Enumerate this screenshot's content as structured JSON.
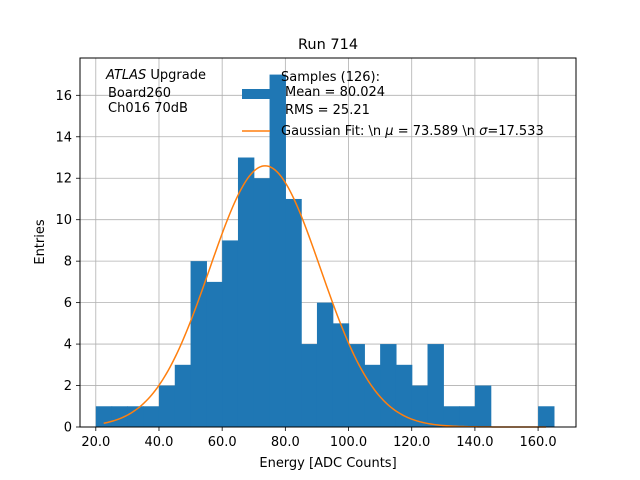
{
  "chart_data": {
    "type": "histogram",
    "title": "Run 714",
    "xlabel": "Energy [ADC Counts]",
    "ylabel": "Entries",
    "xlim": [
      15,
      172
    ],
    "ylim": [
      0,
      17.8
    ],
    "grid": true,
    "xticks": [
      20,
      40,
      60,
      80,
      100,
      120,
      140,
      160
    ],
    "xtick_labels": [
      "20.0",
      "40.0",
      "60.0",
      "80.0",
      "100.0",
      "120.0",
      "140.0",
      "160.0"
    ],
    "yticks": [
      0,
      2,
      4,
      6,
      8,
      10,
      12,
      14,
      16
    ],
    "ytick_labels": [
      "0",
      "2",
      "4",
      "6",
      "8",
      "10",
      "12",
      "14",
      "16"
    ],
    "annotation": {
      "atlas": "ATLAS",
      "upgrade": " Upgrade",
      "line2": "Board260",
      "line3": "Ch016 70dB"
    },
    "legend": {
      "placement": "top-right",
      "hist_lines": [
        "Samples (126):",
        "Mean = 80.024",
        "RMS = 25.21"
      ],
      "fit_prefix": "Gaussian Fit: \\n ",
      "fit_mu": "μ",
      "fit_mid": " = 73.589 \\n ",
      "fit_sigma": "σ",
      "fit_suffix": "=17.533"
    },
    "histogram": {
      "name": "Samples (126)",
      "color": "#1f77b4",
      "bins": [
        {
          "x0": 20.0,
          "x1": 25.0,
          "count": 1
        },
        {
          "x0": 25.0,
          "x1": 30.0,
          "count": 1
        },
        {
          "x0": 30.0,
          "x1": 35.0,
          "count": 1
        },
        {
          "x0": 35.0,
          "x1": 40.0,
          "count": 1
        },
        {
          "x0": 40.0,
          "x1": 45.0,
          "count": 2
        },
        {
          "x0": 45.0,
          "x1": 50.0,
          "count": 3
        },
        {
          "x0": 50.0,
          "x1": 55.0,
          "count": 8
        },
        {
          "x0": 55.0,
          "x1": 60.0,
          "count": 7
        },
        {
          "x0": 60.0,
          "x1": 65.0,
          "count": 9
        },
        {
          "x0": 65.0,
          "x1": 70.0,
          "count": 13
        },
        {
          "x0": 70.0,
          "x1": 75.0,
          "count": 12
        },
        {
          "x0": 75.0,
          "x1": 80.0,
          "count": 17
        },
        {
          "x0": 80.0,
          "x1": 85.0,
          "count": 11
        },
        {
          "x0": 85.0,
          "x1": 90.0,
          "count": 4
        },
        {
          "x0": 90.0,
          "x1": 95.0,
          "count": 6
        },
        {
          "x0": 95.0,
          "x1": 100.0,
          "count": 5
        },
        {
          "x0": 100.0,
          "x1": 105.0,
          "count": 4
        },
        {
          "x0": 105.0,
          "x1": 110.0,
          "count": 3
        },
        {
          "x0": 110.0,
          "x1": 115.0,
          "count": 4
        },
        {
          "x0": 115.0,
          "x1": 120.0,
          "count": 3
        },
        {
          "x0": 120.0,
          "x1": 125.0,
          "count": 2
        },
        {
          "x0": 125.0,
          "x1": 130.0,
          "count": 4
        },
        {
          "x0": 130.0,
          "x1": 135.0,
          "count": 1
        },
        {
          "x0": 135.0,
          "x1": 140.0,
          "count": 1
        },
        {
          "x0": 140.0,
          "x1": 145.0,
          "count": 2
        },
        {
          "x0": 145.0,
          "x1": 150.0,
          "count": 0
        },
        {
          "x0": 150.0,
          "x1": 155.0,
          "count": 0
        },
        {
          "x0": 155.0,
          "x1": 160.0,
          "count": 0
        },
        {
          "x0": 160.0,
          "x1": 165.0,
          "count": 1
        }
      ]
    },
    "fit": {
      "name": "Gaussian Fit",
      "color": "#ff7f0e",
      "amplitude": 12.6,
      "mu": 73.589,
      "sigma": 17.533,
      "x_range": [
        22.5,
        162.5
      ]
    }
  }
}
